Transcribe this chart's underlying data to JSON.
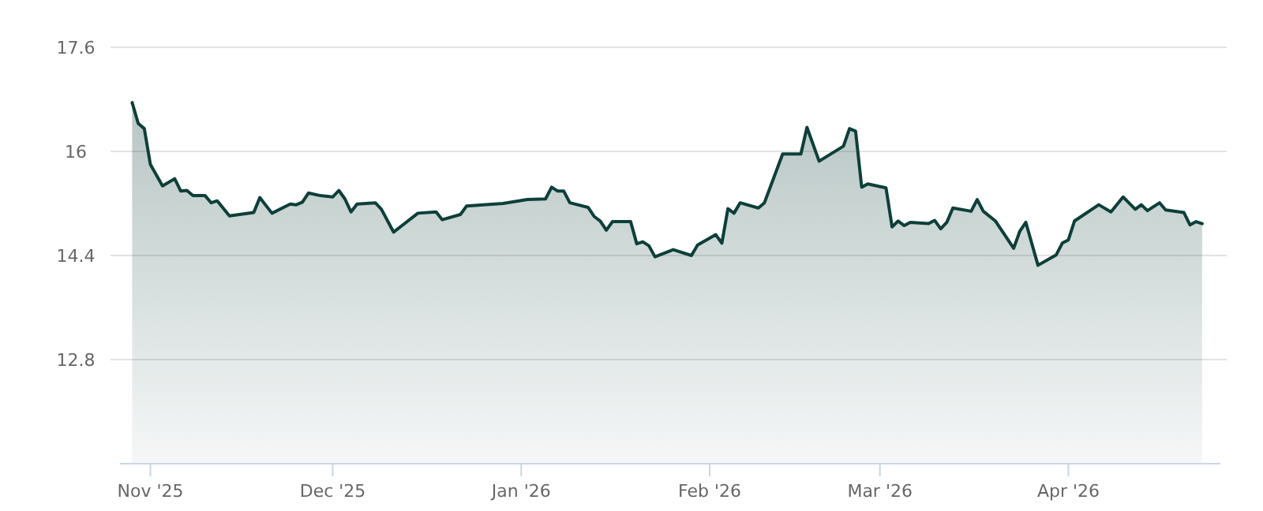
{
  "chart_data": {
    "type": "area",
    "grid": "y",
    "xlim": [
      "2025-10-27",
      "2026-04-26"
    ],
    "ylim": [
      11.2,
      17.6
    ],
    "yticks": [
      17.6,
      16,
      14.4,
      12.8
    ],
    "xticks": [
      {
        "value": "2025-11-01",
        "label": "Nov '25"
      },
      {
        "value": "2025-12-01",
        "label": "Dec '25"
      },
      {
        "value": "2026-01-01",
        "label": "Jan '26"
      },
      {
        "value": "2026-02-01",
        "label": "Feb '26"
      },
      {
        "value": "2026-03-01",
        "label": "Mar '26"
      },
      {
        "value": "2026-04-01",
        "label": "Apr '26"
      }
    ],
    "series": [
      {
        "color": "#0e3f3a",
        "x": [
          "2025-10-29",
          "2025-10-30",
          "2025-10-31",
          "2025-11-01",
          "2025-11-03",
          "2025-11-05",
          "2025-11-06",
          "2025-11-07",
          "2025-11-08",
          "2025-11-10",
          "2025-11-11",
          "2025-11-12",
          "2025-11-14",
          "2025-11-18",
          "2025-11-19",
          "2025-11-21",
          "2025-11-24",
          "2025-11-25",
          "2025-11-26",
          "2025-11-27",
          "2025-11-29",
          "2025-12-01",
          "2025-12-02",
          "2025-12-03",
          "2025-12-04",
          "2025-12-05",
          "2025-12-08",
          "2025-12-09",
          "2025-12-11",
          "2025-12-15",
          "2025-12-18",
          "2025-12-19",
          "2025-12-22",
          "2025-12-23",
          "2025-12-29",
          "2026-01-02",
          "2026-01-05",
          "2026-01-06",
          "2026-01-07",
          "2026-01-08",
          "2026-01-09",
          "2026-01-12",
          "2026-01-13",
          "2026-01-14",
          "2026-01-15",
          "2026-01-16",
          "2026-01-19",
          "2026-01-20",
          "2026-01-21",
          "2026-01-22",
          "2026-01-23",
          "2026-01-26",
          "2026-01-29",
          "2026-01-30",
          "2026-02-02",
          "2026-02-03",
          "2026-02-04",
          "2026-02-05",
          "2026-02-06",
          "2026-02-09",
          "2026-02-10",
          "2026-02-13",
          "2026-02-16",
          "2026-02-17",
          "2026-02-19",
          "2026-02-23",
          "2026-02-24",
          "2026-02-25",
          "2026-02-26",
          "2026-02-27",
          "2026-03-02",
          "2026-03-03",
          "2026-03-04",
          "2026-03-05",
          "2026-03-06",
          "2026-03-09",
          "2026-03-10",
          "2026-03-11",
          "2026-03-12",
          "2026-03-13",
          "2026-03-16",
          "2026-03-17",
          "2026-03-18",
          "2026-03-20",
          "2026-03-23",
          "2026-03-24",
          "2026-03-25",
          "2026-03-27",
          "2026-03-30",
          "2026-03-31",
          "2026-04-01",
          "2026-04-02",
          "2026-04-06",
          "2026-04-08",
          "2026-04-10",
          "2026-04-12",
          "2026-04-13",
          "2026-04-14",
          "2026-04-16",
          "2026-04-17",
          "2026-04-20",
          "2026-04-21",
          "2026-04-22",
          "2026-04-23"
        ],
        "values": [
          16.75,
          16.43,
          16.35,
          15.8,
          15.47,
          15.58,
          15.39,
          15.4,
          15.32,
          15.32,
          15.21,
          15.24,
          15.01,
          15.06,
          15.29,
          15.05,
          15.19,
          15.18,
          15.22,
          15.36,
          15.32,
          15.3,
          15.4,
          15.27,
          15.07,
          15.19,
          15.21,
          15.11,
          14.76,
          15.05,
          15.07,
          14.95,
          15.03,
          15.16,
          15.2,
          15.26,
          15.27,
          15.45,
          15.39,
          15.39,
          15.21,
          15.14,
          15.0,
          14.93,
          14.79,
          14.92,
          14.92,
          14.58,
          14.61,
          14.55,
          14.38,
          14.49,
          14.4,
          14.56,
          14.72,
          14.59,
          15.12,
          15.05,
          15.21,
          15.13,
          15.21,
          15.96,
          15.96,
          16.37,
          15.85,
          16.08,
          16.35,
          16.31,
          15.45,
          15.5,
          15.44,
          14.84,
          14.93,
          14.86,
          14.91,
          14.89,
          14.94,
          14.81,
          14.91,
          15.13,
          15.08,
          15.26,
          15.08,
          14.93,
          14.51,
          14.77,
          14.91,
          14.25,
          14.41,
          14.59,
          14.64,
          14.93,
          15.18,
          15.07,
          15.3,
          15.11,
          15.18,
          15.09,
          15.21,
          15.1,
          15.06,
          14.87,
          14.92,
          14.89
        ]
      }
    ]
  }
}
